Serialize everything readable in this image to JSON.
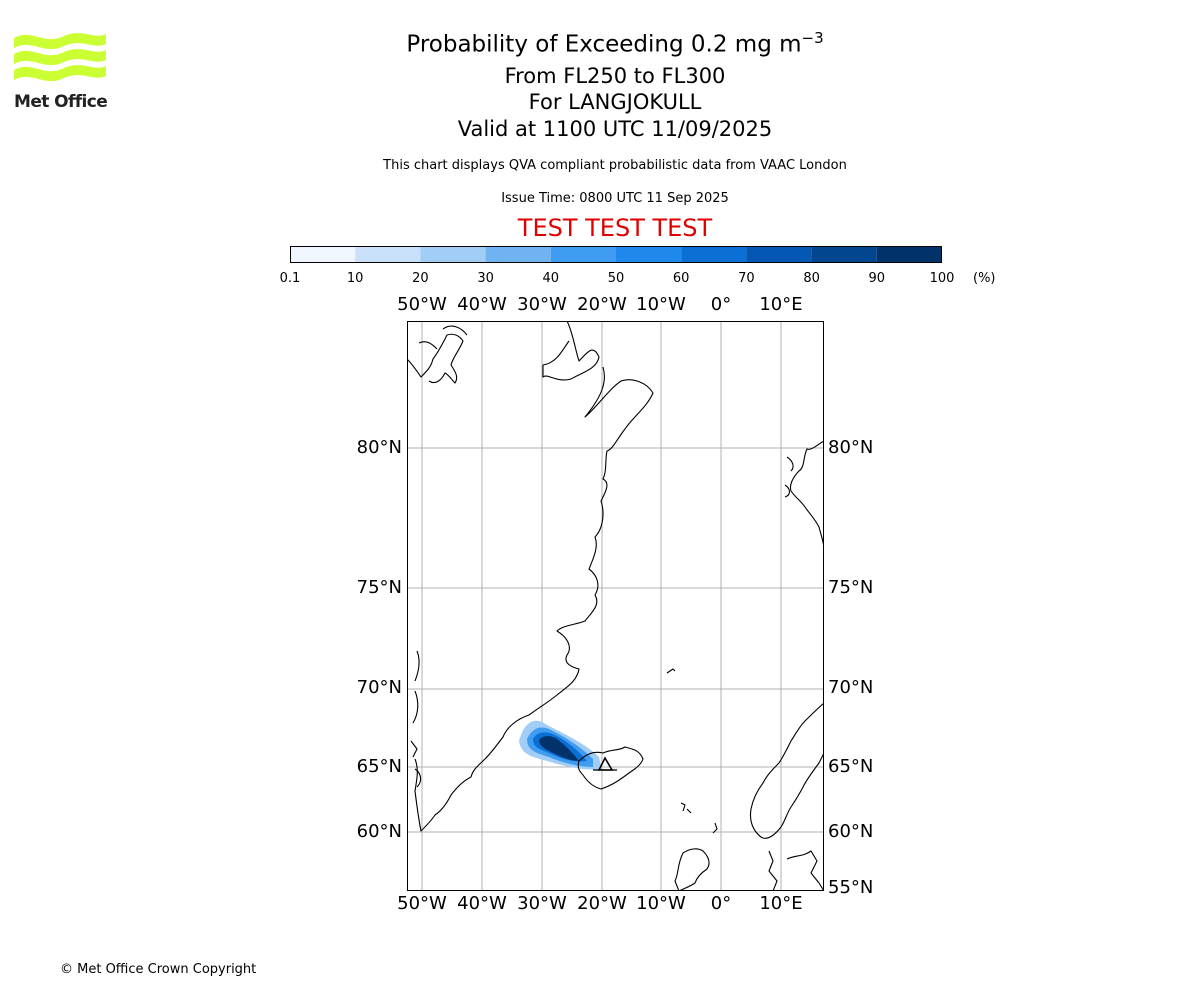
{
  "logo": {
    "text": "Met Office",
    "color": "#ccff33"
  },
  "title": {
    "line1_main": "Probability of Exceeding 0.2 mg m",
    "line1_sup": "−3",
    "line2": "From FL250 to FL300",
    "line3": "For LANGJOKULL",
    "line4": "Valid at 1100 UTC 11/09/2025"
  },
  "subtitle": "This chart displays QVA compliant probabilistic data from VAAC London",
  "issue_time": "Issue Time: 0800 UTC 11 Sep 2025",
  "test_banner": "TEST TEST TEST",
  "colorbar": {
    "ticks": [
      "0.1",
      "10",
      "20",
      "30",
      "40",
      "50",
      "60",
      "70",
      "80",
      "90",
      "100"
    ],
    "unit": "(%)",
    "colors": [
      "#eff6ff",
      "#c8e0f8",
      "#a2cdf6",
      "#6fb3f2",
      "#3f9cf0",
      "#1f88ec",
      "#0b6fd6",
      "#0458b4",
      "#034690",
      "#02326a"
    ]
  },
  "map": {
    "lon_labels": [
      "50°W",
      "40°W",
      "30°W",
      "20°W",
      "10°W",
      "0°",
      "10°E"
    ],
    "lat_labels_left": [
      "80°N",
      "75°N",
      "70°N",
      "65°N",
      "60°N"
    ],
    "lat_labels_right": [
      "80°N",
      "75°N",
      "70°N",
      "65°N",
      "60°N",
      "55°N"
    ],
    "source_marker": "volcano-triangle"
  },
  "copyright": "© Met Office Crown Copyright"
}
